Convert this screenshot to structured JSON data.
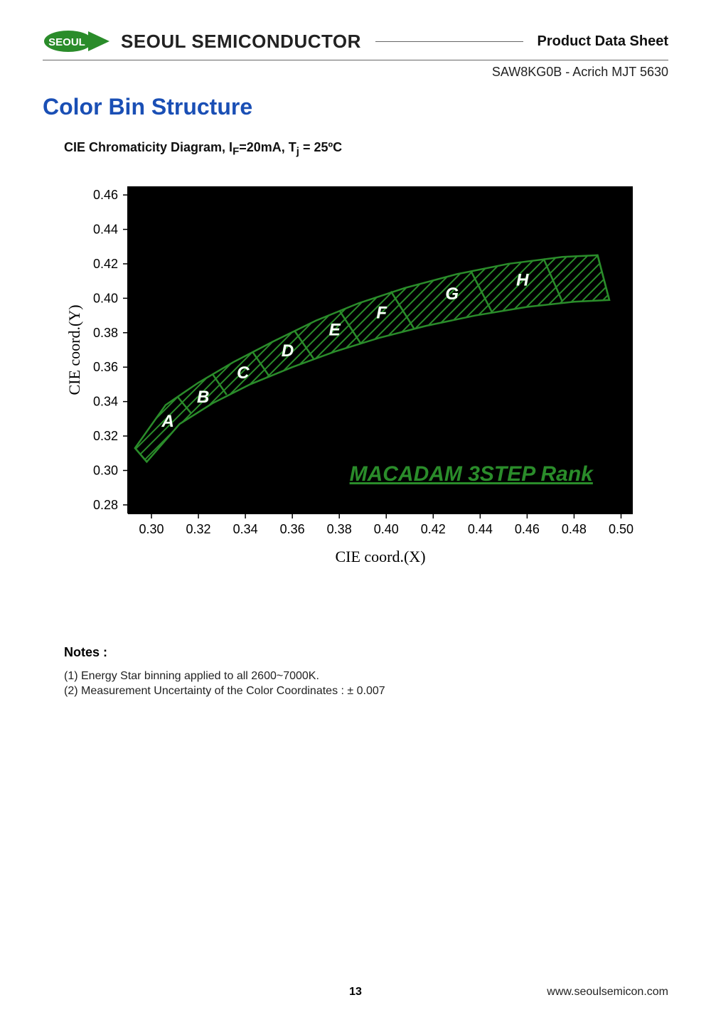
{
  "header": {
    "logo_text": "SEOUL",
    "company": "SEOUL SEMICONDUCTOR",
    "pds": "Product Data Sheet",
    "product": "SAW8KG0B  - Acrich MJT 5630"
  },
  "section_title": "Color Bin Structure",
  "chart": {
    "title": "CIE Chromaticity Diagram, I_F=20mA, T_j = 25°C",
    "xlabel": "CIE coord.(X)",
    "ylabel": "CIE coord.(Y)",
    "xlim": [
      0.29,
      0.505
    ],
    "ylim": [
      0.275,
      0.465
    ],
    "xticks": [
      0.3,
      0.32,
      0.34,
      0.36,
      0.38,
      0.4,
      0.42,
      0.44,
      0.46,
      0.48,
      0.5
    ],
    "yticks": [
      0.28,
      0.3,
      0.32,
      0.34,
      0.36,
      0.38,
      0.4,
      0.42,
      0.44,
      0.46
    ],
    "plot_bg": "#000000",
    "bin_stroke": "#2a8c2a",
    "bin_stroke_width": 2.5,
    "hatch_color": "#2a8c2a",
    "label_color_fill": "#ffffff",
    "label_color_stroke": "#0a6b0a",
    "macadam_text": "MACADAM 3STEP Rank",
    "bins": [
      {
        "label": "A",
        "lx": 0.307,
        "ly": 0.328,
        "poly": [
          [
            0.298,
            0.305
          ],
          [
            0.312,
            0.329
          ],
          [
            0.324,
            0.342
          ],
          [
            0.318,
            0.349
          ],
          [
            0.306,
            0.338
          ],
          [
            0.293,
            0.313
          ]
        ]
      },
      {
        "label": "B",
        "lx": 0.322,
        "ly": 0.342,
        "poly": [
          [
            0.312,
            0.329
          ],
          [
            0.327,
            0.343
          ],
          [
            0.341,
            0.355
          ],
          [
            0.335,
            0.363
          ],
          [
            0.324,
            0.352
          ],
          [
            0.306,
            0.338
          ]
        ],
        "_unused": true
      },
      {
        "label": "C",
        "lx": 0.339,
        "ly": 0.356,
        "poly": []
      },
      {
        "label": "D",
        "lx": 0.358,
        "ly": 0.369,
        "poly": []
      },
      {
        "label": "E",
        "lx": 0.378,
        "ly": 0.381,
        "poly": []
      },
      {
        "label": "F",
        "lx": 0.398,
        "ly": 0.391,
        "poly": []
      },
      {
        "label": "G",
        "lx": 0.428,
        "ly": 0.402,
        "poly": []
      },
      {
        "label": "H",
        "lx": 0.458,
        "ly": 0.41,
        "poly": []
      }
    ],
    "band_upper": [
      [
        0.293,
        0.313
      ],
      [
        0.306,
        0.338
      ],
      [
        0.32,
        0.351
      ],
      [
        0.335,
        0.363
      ],
      [
        0.352,
        0.375
      ],
      [
        0.37,
        0.387
      ],
      [
        0.388,
        0.397
      ],
      [
        0.408,
        0.406
      ],
      [
        0.43,
        0.414
      ],
      [
        0.452,
        0.42
      ],
      [
        0.475,
        0.424
      ],
      [
        0.49,
        0.425
      ]
    ],
    "band_lower": [
      [
        0.298,
        0.305
      ],
      [
        0.312,
        0.327
      ],
      [
        0.326,
        0.339
      ],
      [
        0.342,
        0.35
      ],
      [
        0.36,
        0.36
      ],
      [
        0.378,
        0.369
      ],
      [
        0.397,
        0.377
      ],
      [
        0.417,
        0.384
      ],
      [
        0.438,
        0.39
      ],
      [
        0.46,
        0.395
      ],
      [
        0.48,
        0.398
      ],
      [
        0.495,
        0.399
      ]
    ],
    "dividers": [
      [
        [
          0.298,
          0.305
        ],
        [
          0.293,
          0.313
        ]
      ],
      [
        [
          0.317,
          0.333
        ],
        [
          0.311,
          0.343
        ]
      ],
      [
        [
          0.332,
          0.344
        ],
        [
          0.326,
          0.356
        ]
      ],
      [
        [
          0.35,
          0.355
        ],
        [
          0.343,
          0.369
        ]
      ],
      [
        [
          0.369,
          0.365
        ],
        [
          0.361,
          0.381
        ]
      ],
      [
        [
          0.389,
          0.374
        ],
        [
          0.38,
          0.393
        ]
      ],
      [
        [
          0.412,
          0.382
        ],
        [
          0.402,
          0.404
        ]
      ],
      [
        [
          0.445,
          0.392
        ],
        [
          0.436,
          0.416
        ]
      ],
      [
        [
          0.475,
          0.398
        ],
        [
          0.467,
          0.423
        ]
      ],
      [
        [
          0.495,
          0.399
        ],
        [
          0.49,
          0.425
        ]
      ]
    ]
  },
  "notes": {
    "title": "Notes :",
    "items": [
      "(1)  Energy Star binning applied to all 2600~7000K.",
      "(2)  Measurement Uncertainty of the Color Coordinates :  ± 0.007"
    ]
  },
  "footer": {
    "page": "13",
    "url": "www.seoulsemicon.com"
  }
}
